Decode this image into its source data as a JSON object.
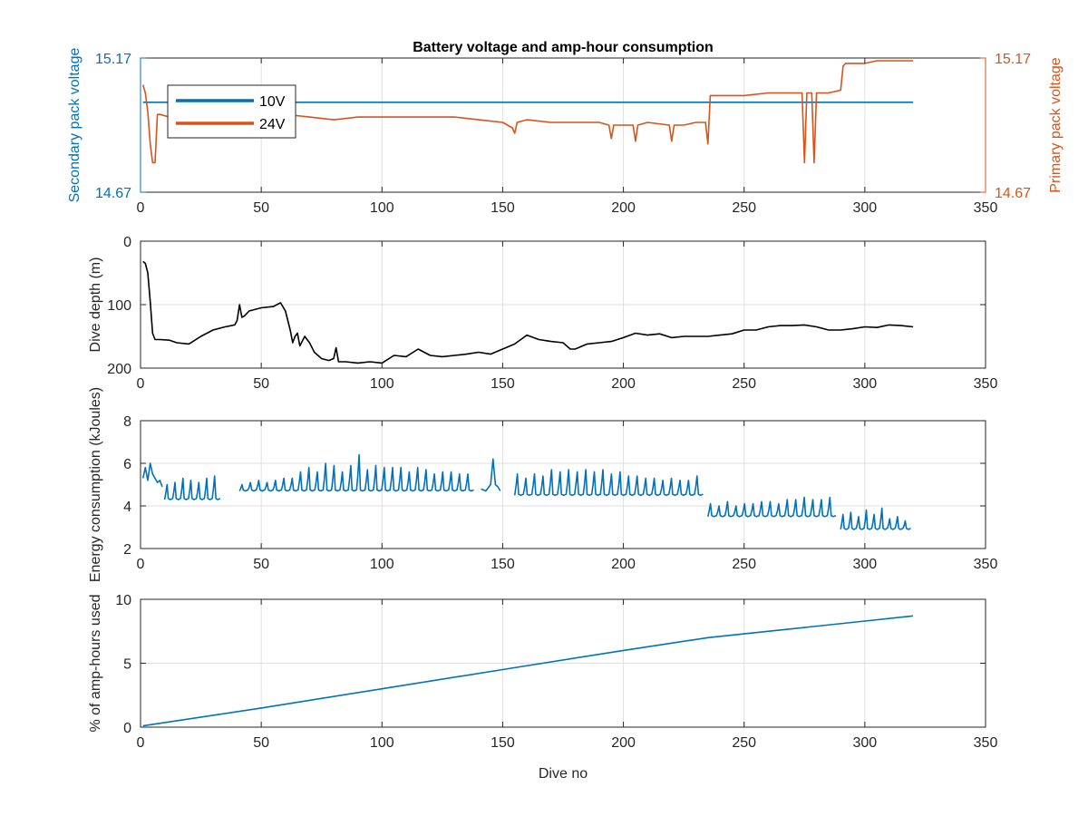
{
  "figure": {
    "title": "Battery voltage and amp-hour consumption",
    "colors": {
      "blue": "#0072BD",
      "orange": "#D95319",
      "black": "#000000",
      "axis": "#262626",
      "grid": "#dfdfdf"
    }
  },
  "chart_data": [
    {
      "id": "voltage",
      "type": "line",
      "title": "Battery voltage and amp-hour consumption",
      "xlim": [
        0,
        350
      ],
      "xticks": [
        "0",
        "50",
        "100",
        "150",
        "200",
        "250",
        "300",
        "350"
      ],
      "ylabel_left": "Secondary pack voltage",
      "ylabel_right": "Primary pack voltage",
      "ylim": [
        14.67,
        15.17
      ],
      "yticks_left": [
        "14.67",
        "15.17"
      ],
      "yticks_right": [
        "14.67",
        "15.17"
      ],
      "grid": true,
      "legend": {
        "location": "top-left",
        "entries": [
          "10V",
          "24V"
        ]
      },
      "series": [
        {
          "name": "10V",
          "axis": "left",
          "color": "#0072BD",
          "x": [
            1,
            320
          ],
          "y": [
            15.005,
            15.005
          ]
        },
        {
          "name": "24V",
          "axis": "right",
          "color": "#D95319",
          "x": [
            1,
            2,
            3,
            4,
            5,
            6,
            7,
            8,
            12,
            18,
            19,
            20,
            25,
            30,
            31,
            32,
            40,
            42,
            43,
            44,
            50,
            60,
            70,
            80,
            90,
            100,
            110,
            120,
            130,
            140,
            150,
            154,
            155,
            156,
            160,
            170,
            180,
            190,
            194,
            195,
            196,
            200,
            204,
            205,
            206,
            210,
            219,
            220,
            221,
            225,
            230,
            234,
            235,
            236,
            240,
            250,
            260,
            270,
            274,
            275,
            276,
            278,
            279,
            280,
            281,
            285,
            290,
            291,
            292,
            295,
            300,
            305,
            310,
            315,
            320
          ],
          "y": [
            15.07,
            15.04,
            14.97,
            14.85,
            14.78,
            14.78,
            14.96,
            14.96,
            14.95,
            14.95,
            14.92,
            14.95,
            14.94,
            14.94,
            14.92,
            14.95,
            14.95,
            14.92,
            14.93,
            14.95,
            14.96,
            14.96,
            14.95,
            14.94,
            14.95,
            14.95,
            14.95,
            14.95,
            14.95,
            14.94,
            14.93,
            14.91,
            14.89,
            14.93,
            14.94,
            14.93,
            14.93,
            14.93,
            14.92,
            14.87,
            14.92,
            14.92,
            14.92,
            14.86,
            14.92,
            14.93,
            14.92,
            14.86,
            14.92,
            14.92,
            14.93,
            14.93,
            14.85,
            15.03,
            15.03,
            15.03,
            15.04,
            15.04,
            15.04,
            14.78,
            15.04,
            15.04,
            14.78,
            15.04,
            15.04,
            15.04,
            15.05,
            15.14,
            15.15,
            15.15,
            15.15,
            15.16,
            15.16,
            15.16,
            15.16
          ]
        }
      ]
    },
    {
      "id": "depth",
      "type": "line",
      "xlim": [
        0,
        350
      ],
      "xticks": [
        "0",
        "50",
        "100",
        "150",
        "200",
        "250",
        "300",
        "350"
      ],
      "ylabel": "Dive depth (m)",
      "ylim": [
        0,
        200
      ],
      "y_reversed": true,
      "yticks": [
        "0",
        "100",
        "200"
      ],
      "grid": true,
      "series": [
        {
          "color": "#000000",
          "x": [
            1,
            2,
            3,
            4,
            5,
            6,
            8,
            12,
            15,
            20,
            25,
            30,
            35,
            39,
            40,
            41,
            42,
            43,
            45,
            50,
            55,
            58,
            60,
            62,
            63,
            64,
            65,
            66,
            68,
            70,
            72,
            75,
            78,
            80,
            81,
            82,
            85,
            90,
            95,
            100,
            105,
            110,
            115,
            120,
            125,
            130,
            135,
            140,
            145,
            150,
            155,
            160,
            165,
            170,
            175,
            178,
            180,
            185,
            190,
            195,
            200,
            205,
            210,
            215,
            220,
            225,
            230,
            235,
            240,
            245,
            250,
            255,
            260,
            265,
            270,
            275,
            280,
            285,
            290,
            295,
            300,
            305,
            310,
            315,
            320
          ],
          "y": [
            32,
            35,
            50,
            95,
            145,
            155,
            155,
            156,
            160,
            162,
            150,
            140,
            135,
            132,
            125,
            100,
            120,
            118,
            110,
            105,
            103,
            97,
            110,
            140,
            160,
            150,
            145,
            165,
            150,
            160,
            175,
            185,
            188,
            185,
            168,
            190,
            190,
            192,
            190,
            192,
            180,
            182,
            170,
            180,
            182,
            180,
            178,
            175,
            178,
            170,
            162,
            148,
            155,
            158,
            160,
            170,
            170,
            162,
            160,
            158,
            152,
            145,
            148,
            146,
            152,
            150,
            150,
            150,
            148,
            146,
            140,
            140,
            135,
            133,
            133,
            132,
            135,
            140,
            140,
            138,
            135,
            136,
            132,
            133,
            135
          ]
        }
      ]
    },
    {
      "id": "energy",
      "type": "line",
      "xlim": [
        0,
        350
      ],
      "xticks": [
        "0",
        "50",
        "100",
        "150",
        "200",
        "250",
        "300",
        "350"
      ],
      "ylabel": "Energy consumption (kJoules)",
      "ylim": [
        2,
        8
      ],
      "yticks": [
        "2",
        "4",
        "6",
        "8"
      ],
      "grid": true,
      "series": [
        {
          "color": "#0072BD",
          "segments": [
            {
              "x": [
                1,
                2,
                3,
                4,
                5,
                6,
                7,
                8,
                9
              ],
              "y": [
                5.3,
                5.8,
                5.2,
                6.0,
                5.5,
                5.3,
                5.1,
                5.2,
                4.9
              ]
            },
            {
              "x_start": 10,
              "x_end": 33,
              "period": 3.5,
              "base": 4.3,
              "peak": 5.1,
              "peaks": [
                5.0,
                5.1,
                5.3,
                5.2,
                5.1,
                5.3,
                5.4
              ]
            },
            {
              "x_start": 41,
              "x_end": 138,
              "period": 3.5,
              "base": 4.7,
              "peak": 5.6,
              "peaks": [
                5.0,
                5.1,
                5.2,
                5.1,
                5.2,
                5.3,
                5.3,
                5.6,
                5.8,
                5.6,
                6.0,
                5.9,
                5.6,
                5.9,
                6.4,
                5.7,
                5.9,
                5.8,
                5.8,
                5.8,
                5.6,
                5.8,
                5.7,
                5.5,
                5.6,
                5.6,
                5.5,
                5.5
              ]
            },
            {
              "x": [
                141,
                143,
                145,
                146,
                147,
                148,
                149
              ],
              "y": [
                4.8,
                4.7,
                5.0,
                6.2,
                5.0,
                4.9,
                4.7
              ]
            },
            {
              "x_start": 155,
              "x_end": 233,
              "period": 3.5,
              "base": 4.5,
              "peak": 5.4,
              "peaks": [
                5.5,
                5.3,
                5.5,
                5.4,
                5.7,
                5.6,
                5.7,
                5.6,
                5.7,
                5.6,
                5.7,
                5.5,
                5.6,
                5.4,
                5.4,
                5.3,
                5.3,
                5.2,
                5.3,
                5.2,
                5.2,
                5.4
              ]
            },
            {
              "x_start": 235,
              "x_end": 288,
              "period": 3.5,
              "base": 3.5,
              "peak": 4.2,
              "peaks": [
                4.1,
                4.0,
                4.2,
                4.0,
                4.1,
                4.1,
                4.2,
                4.2,
                4.1,
                4.3,
                4.3,
                4.4,
                4.3,
                4.3,
                4.4
              ]
            },
            {
              "x_start": 290,
              "x_end": 319,
              "period": 3.5,
              "base": 2.9,
              "peak": 3.6,
              "peaks": [
                3.6,
                3.7,
                3.5,
                3.8,
                3.6,
                3.9,
                3.4,
                3.5,
                3.3
              ]
            }
          ]
        }
      ]
    },
    {
      "id": "amphours",
      "type": "line",
      "xlim": [
        0,
        350
      ],
      "xticks": [
        "0",
        "50",
        "100",
        "150",
        "200",
        "250",
        "300",
        "350"
      ],
      "xlabel": "Dive no",
      "ylabel": "% of amp-hours used",
      "ylim": [
        0,
        10
      ],
      "yticks": [
        "0",
        "5",
        "10"
      ],
      "grid": true,
      "series": [
        {
          "color": "#0072BD",
          "x": [
            1,
            50,
            100,
            150,
            200,
            235,
            250,
            300,
            320
          ],
          "y": [
            0.1,
            1.5,
            3.0,
            4.5,
            6.0,
            7.0,
            7.3,
            8.3,
            8.7
          ]
        }
      ]
    }
  ]
}
